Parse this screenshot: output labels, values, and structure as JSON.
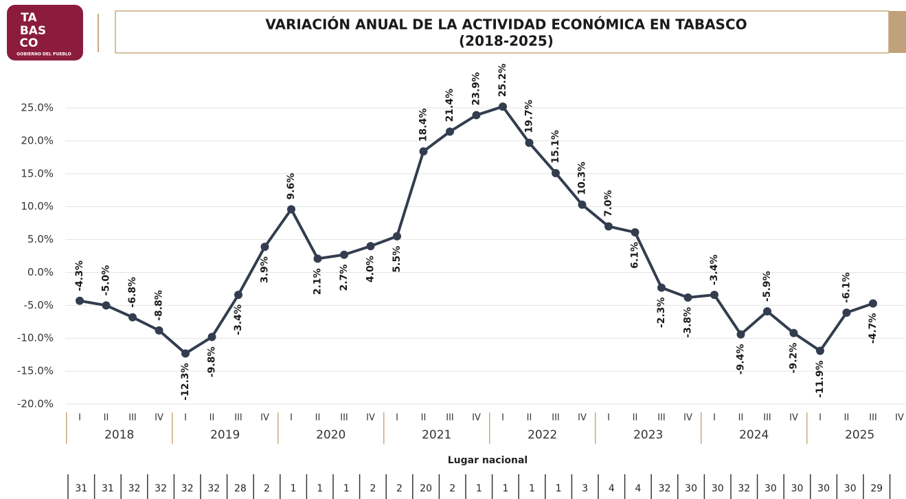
{
  "logo": {
    "lines": [
      "TA",
      "BAS",
      "CO"
    ],
    "subtitle": "GOBIERNO DEL PUEBLO"
  },
  "chart_data": {
    "type": "line",
    "title": "VARIACIÓN ANUAL DE LA ACTIVIDAD ECONÓMICA EN TABASCO",
    "subtitle": "(2018-2025)",
    "categories": [
      "I",
      "II",
      "III",
      "IV",
      "I",
      "II",
      "III",
      "IV",
      "I",
      "II",
      "III",
      "IV",
      "I",
      "II",
      "III",
      "IV",
      "I",
      "II",
      "III",
      "IV",
      "I",
      "II",
      "III",
      "IV",
      "I",
      "II",
      "III",
      "IV",
      "I",
      "II",
      "III",
      "IV"
    ],
    "years": [
      "2018",
      "2019",
      "2020",
      "2021",
      "2022",
      "2023",
      "2024",
      "2025"
    ],
    "series": [
      {
        "name": null,
        "color": "#333d4f",
        "values": [
          -4.3,
          -5.0,
          -6.8,
          -8.8,
          -12.3,
          -9.8,
          -3.4,
          3.9,
          9.6,
          2.1,
          2.7,
          4.0,
          5.5,
          18.4,
          21.4,
          23.9,
          25.2,
          19.7,
          15.1,
          10.3,
          7.0,
          6.1,
          -2.3,
          -3.8,
          -3.4,
          -9.4,
          -5.9,
          -9.2,
          -11.9,
          -6.1,
          -4.7,
          null
        ],
        "value_labels": [
          "-4.3%",
          "-5.0%",
          "-6.8%",
          "-8.8%",
          "-12.3%",
          "-9.8%",
          "-3.4%",
          "3.9%",
          "9.6%",
          "2.1%",
          "2.7%",
          "4.0%",
          "5.5%",
          "18.4%",
          "21.4%",
          "23.9%",
          "25.2%",
          "19.7%",
          "15.1%",
          "10.3%",
          "7.0%",
          "6.1%",
          "-2.3%",
          "-3.8%",
          "-3.4%",
          "-9.4%",
          "-5.9%",
          "-9.2%",
          "-11.9%",
          "-6.1%",
          "-4.7%",
          null
        ]
      }
    ],
    "ylim": [
      -20,
      25
    ],
    "yticks": [
      {
        "value": -20,
        "label": "-20.0%"
      },
      {
        "value": -15,
        "label": "-15.0%"
      },
      {
        "value": -10,
        "label": "-10.0%"
      },
      {
        "value": -5,
        "label": "-5.0%"
      },
      {
        "value": 0,
        "label": "0.0%"
      },
      {
        "value": 5,
        "label": "5.0%"
      },
      {
        "value": 10,
        "label": "10.0%"
      },
      {
        "value": 15,
        "label": "15.0%"
      },
      {
        "value": 20,
        "label": "20.0%"
      },
      {
        "value": 25,
        "label": "25.0%"
      }
    ],
    "grid": true,
    "rank_title": "Lugar nacional",
    "ranks": [
      31,
      31,
      32,
      32,
      32,
      32,
      28,
      2,
      1,
      1,
      1,
      2,
      2,
      20,
      2,
      1,
      1,
      1,
      1,
      3,
      4,
      4,
      32,
      30,
      30,
      32,
      30,
      30,
      30,
      30,
      29
    ]
  }
}
